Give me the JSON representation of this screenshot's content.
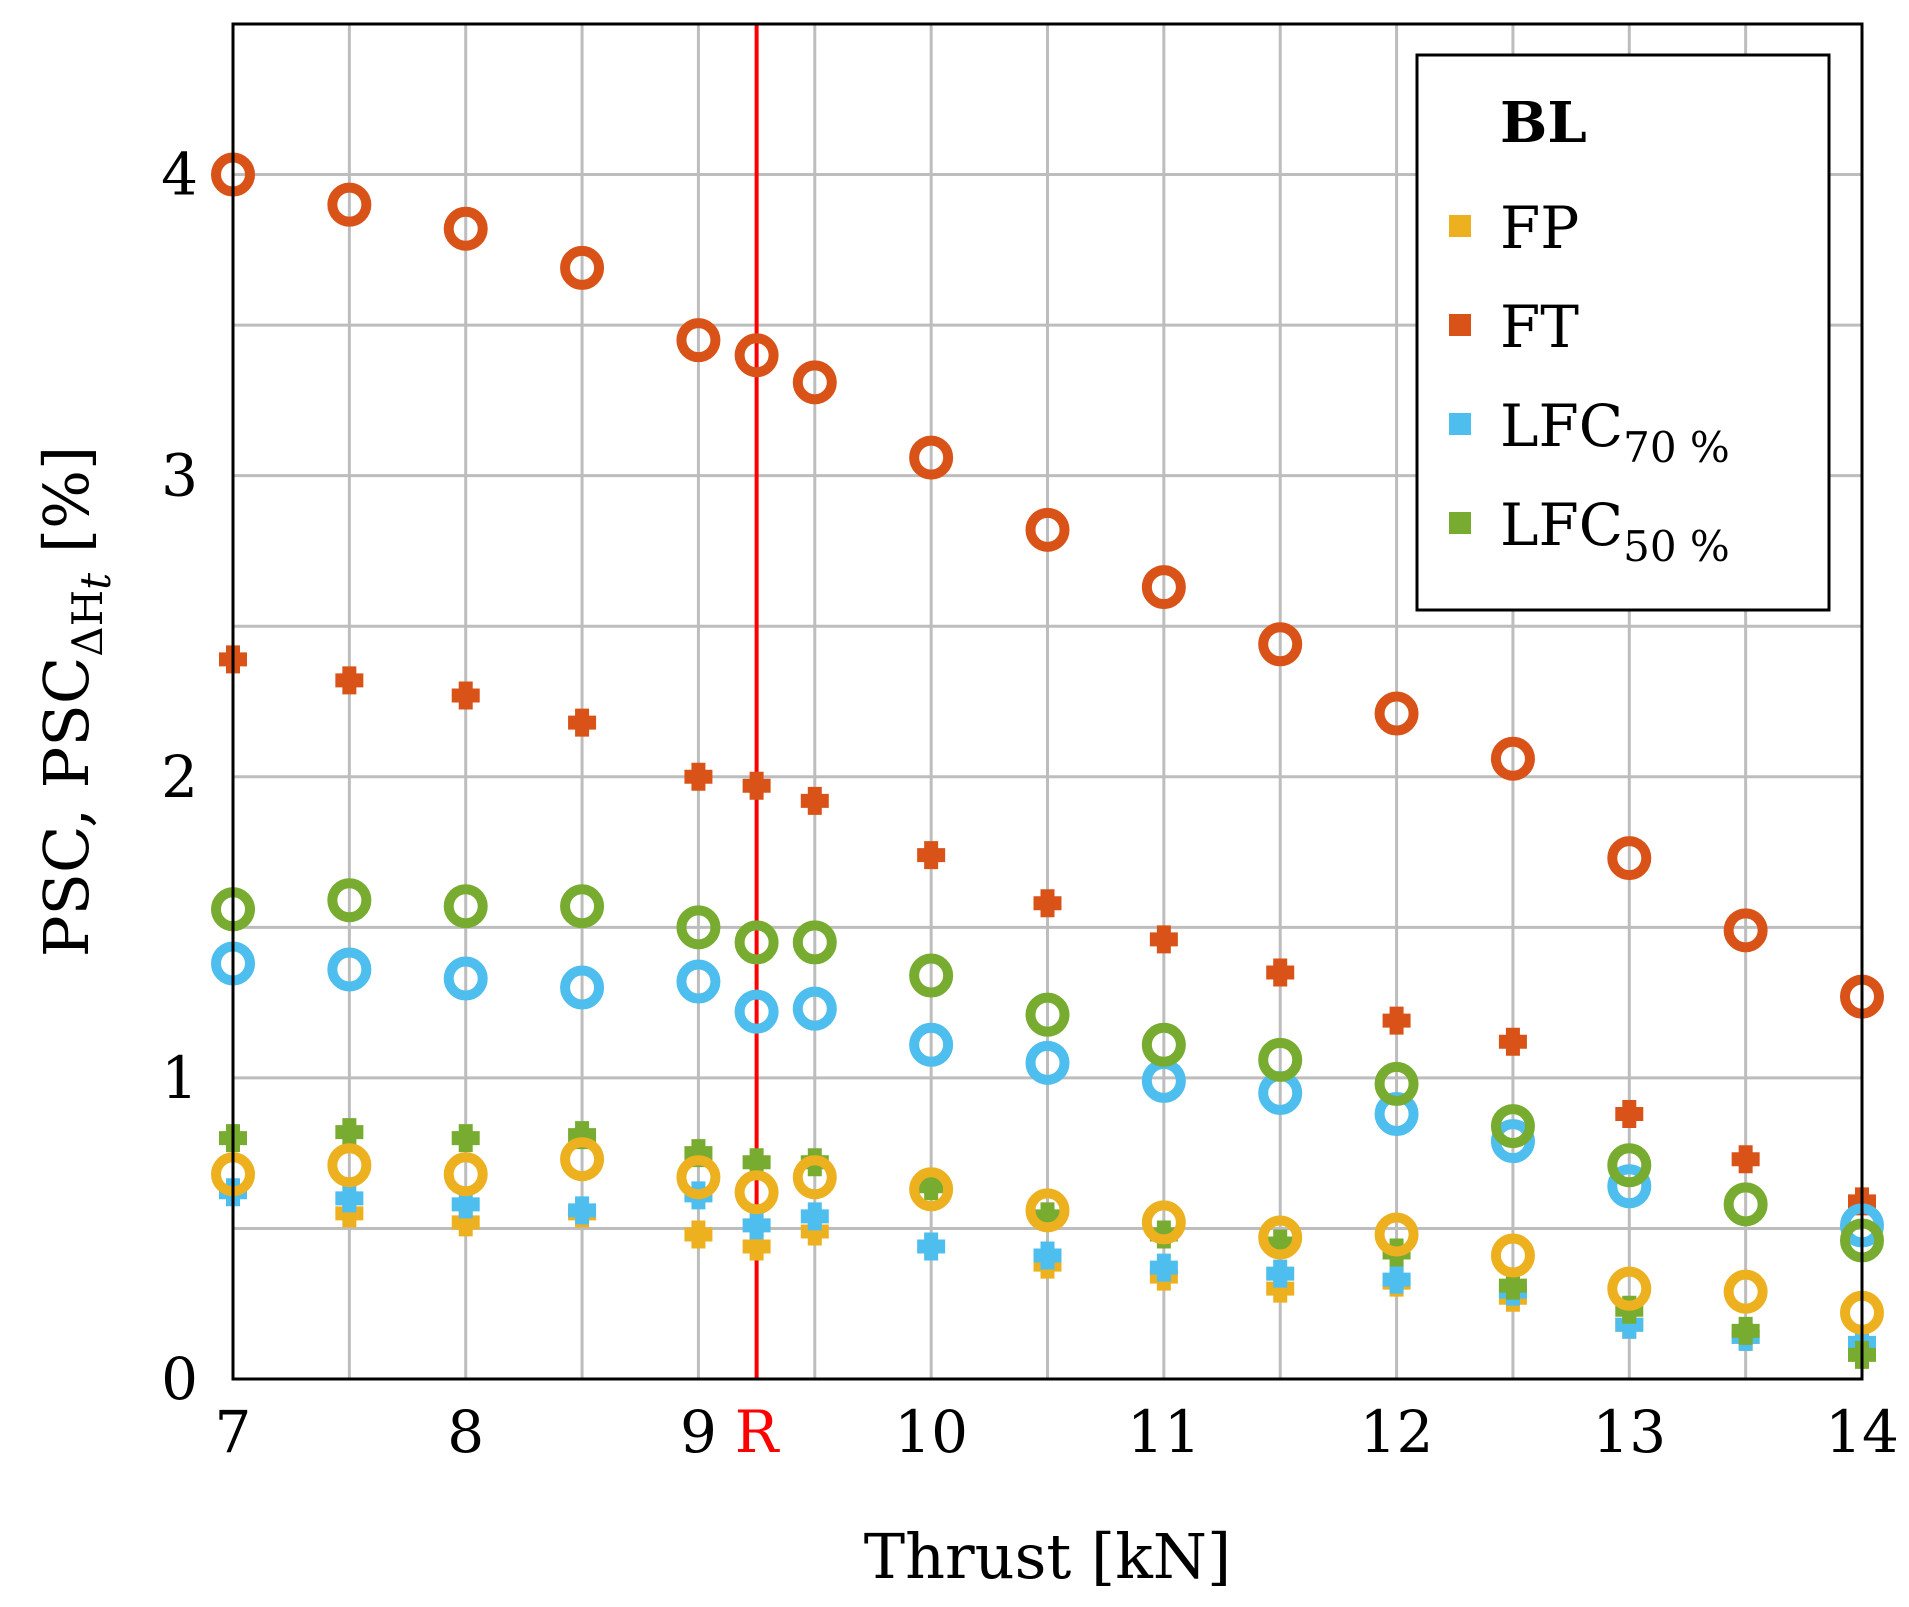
{
  "chart_data": {
    "type": "scatter",
    "title": "",
    "xlabel": "Thrust [kN]",
    "ylabel": "PSC, PSC",
    "ylabel_subscript": "ΔH",
    "ylabel_subsubscript": "t",
    "ylabel_suffix": "[%]",
    "xlim": [
      7,
      14
    ],
    "ylim": [
      0,
      4.5
    ],
    "xticks": [
      7,
      8,
      9,
      10,
      11,
      12,
      13,
      14
    ],
    "yticks": [
      0,
      1,
      2,
      3,
      4
    ],
    "grid": true,
    "reference_line": {
      "x": 9.25,
      "label": "R",
      "color": "#ff0000"
    },
    "legend": {
      "position": "top-right",
      "title": "BL",
      "entries": [
        {
          "label": "FP",
          "subscript": ""
        },
        {
          "label": "FT",
          "subscript": ""
        },
        {
          "label": "LFC",
          "subscript": "70 %"
        },
        {
          "label": "LFC",
          "subscript": "50 %"
        }
      ]
    },
    "marker_meaning": {
      "circle": "PSC",
      "plus": "PSC_ΔHt"
    },
    "x": [
      7,
      7.5,
      8,
      8.5,
      9,
      9.25,
      9.5,
      10,
      10.5,
      11,
      11.5,
      12,
      12.5,
      13,
      13.5,
      14
    ],
    "series": [
      {
        "name": "FP",
        "color": "#edb120",
        "psc": [
          0.68,
          0.71,
          0.68,
          0.73,
          0.67,
          0.62,
          0.67,
          0.63,
          0.56,
          0.52,
          0.47,
          0.48,
          0.41,
          0.3,
          0.29,
          0.22
        ],
        "psc_dh": [
          null,
          0.55,
          0.52,
          0.55,
          0.48,
          0.44,
          0.49,
          null,
          0.38,
          0.34,
          0.3,
          0.32,
          0.27,
          0.18,
          0.14,
          0.1
        ]
      },
      {
        "name": "FT",
        "color": "#d95319",
        "psc": [
          4.0,
          3.9,
          3.82,
          3.69,
          3.45,
          3.4,
          3.31,
          3.06,
          2.82,
          2.63,
          2.44,
          2.21,
          2.06,
          1.73,
          1.49,
          1.27
        ],
        "psc_dh": [
          2.39,
          2.32,
          2.27,
          2.18,
          2.0,
          1.97,
          1.92,
          1.74,
          1.58,
          1.46,
          1.35,
          1.19,
          1.12,
          0.88,
          0.73,
          0.59
        ]
      },
      {
        "name": "LFC 70 %",
        "color": "#4dbeee",
        "psc": [
          1.38,
          1.36,
          1.33,
          1.3,
          1.32,
          1.22,
          1.23,
          1.11,
          1.05,
          0.99,
          0.95,
          0.88,
          0.79,
          0.64,
          null,
          0.51
        ],
        "psc_dh": [
          0.62,
          0.6,
          0.58,
          0.56,
          0.61,
          0.51,
          0.54,
          0.44,
          0.41,
          0.37,
          0.35,
          0.33,
          0.29,
          0.18,
          0.14,
          0.12
        ]
      },
      {
        "name": "LFC 50 %",
        "color": "#77ac30",
        "psc": [
          1.56,
          1.59,
          1.57,
          1.57,
          1.5,
          1.45,
          1.45,
          1.34,
          1.21,
          1.11,
          1.06,
          0.98,
          0.84,
          0.71,
          0.58,
          0.46
        ],
        "psc_dh": [
          0.8,
          0.82,
          0.8,
          0.81,
          0.75,
          0.72,
          0.72,
          0.64,
          0.54,
          0.48,
          0.45,
          0.42,
          0.31,
          0.23,
          0.16,
          0.08
        ]
      }
    ]
  }
}
